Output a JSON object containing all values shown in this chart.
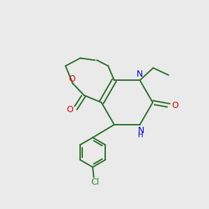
{
  "bg_color": "#eaeaea",
  "bond_color": "#2a6b2a",
  "atom_colors": {
    "O": "#dd0000",
    "N": "#0000bb",
    "Cl": "#2a8c2a"
  },
  "figsize": [
    3.0,
    3.0
  ],
  "dpi": 100
}
